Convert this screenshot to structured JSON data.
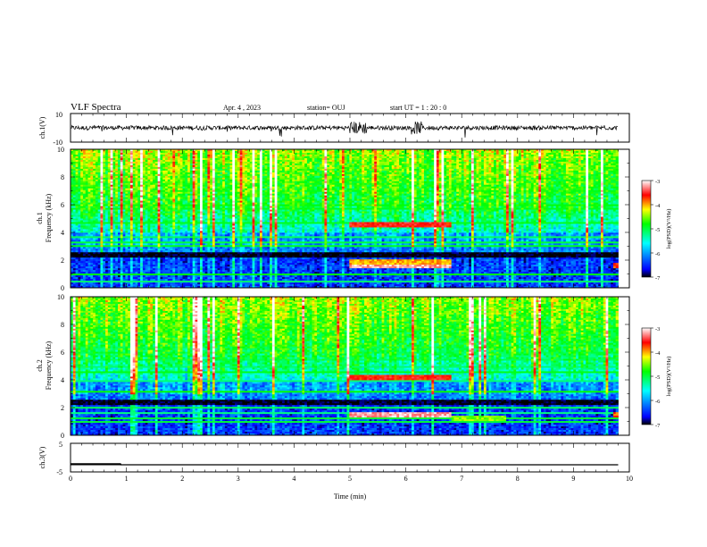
{
  "header": {
    "title": "VLF Spectra",
    "date": "Apr. 4  , 2023",
    "station": "station= OUJ",
    "start": "start  UT  =   1 : 20 : 0"
  },
  "colorbar": {
    "label": "log(PSD)(V²/Hz)",
    "ticks": [
      "-3",
      "-4",
      "-5",
      "-6",
      "-7"
    ],
    "range": [
      -7,
      -3
    ],
    "colors": [
      "#000000",
      "#0000ff",
      "#00ffff",
      "#00ff00",
      "#ffff00",
      "#ff0000",
      "#ffffff"
    ]
  },
  "chart_data": [
    {
      "type": "line",
      "name": "ch1-waveform",
      "ylabel": "ch.1(V)",
      "ylim": [
        -10,
        10
      ],
      "y_tick_labels": [
        "10",
        "-10"
      ],
      "xlim": [
        0,
        10
      ],
      "description_values": {
        "baseline_amplitude_V": 1.5,
        "burst_intervals_min": [
          [
            5.0,
            5.3
          ],
          [
            6.1,
            6.3
          ]
        ]
      }
    },
    {
      "type": "heatmap",
      "name": "ch1-spectrogram",
      "ylabel_line1": "ch.1",
      "ylabel_line2": "Frequency (kHz)",
      "ylim": [
        0,
        10
      ],
      "y_tick_labels": [
        "0",
        "2",
        "4",
        "6",
        "8",
        "10"
      ],
      "xlim": [
        0,
        10
      ],
      "data_end_min": 9.8,
      "bands": [
        {
          "f_kHz": 4.5,
          "t_start": 5.0,
          "t_end": 6.8,
          "level": -3.6
        },
        {
          "f_kHz": 1.6,
          "t_start": 5.0,
          "t_end": 6.8,
          "level": -3.2
        },
        {
          "f_kHz": 1.9,
          "t_start": 5.0,
          "t_end": 6.8,
          "level": -4.0
        },
        {
          "f_kHz": 1.6,
          "t_start": 9.7,
          "t_end": 9.8,
          "level": -3.8
        }
      ]
    },
    {
      "type": "heatmap",
      "name": "ch2-spectrogram",
      "ylabel_line1": "ch.2",
      "ylabel_line2": "Frequency (kHz)",
      "ylim": [
        0,
        10
      ],
      "y_tick_labels": [
        "0",
        "2",
        "4",
        "6",
        "8",
        "10"
      ],
      "xlim": [
        0,
        10
      ],
      "data_end_min": 9.8,
      "bands": [
        {
          "f_kHz": 4.2,
          "t_start": 5.0,
          "t_end": 6.8,
          "level": -3.6
        },
        {
          "f_kHz": 1.5,
          "t_start": 5.0,
          "t_end": 6.8,
          "level": -3.2
        },
        {
          "f_kHz": 1.2,
          "t_start": 6.8,
          "t_end": 7.8,
          "level": -4.5
        },
        {
          "f_kHz": 1.5,
          "t_start": 9.7,
          "t_end": 9.8,
          "level": -3.8
        }
      ]
    },
    {
      "type": "line",
      "name": "ch3-signal",
      "ylabel": "ch.3(V)",
      "ylim": [
        -5,
        5
      ],
      "y_tick_labels": [
        "5",
        "-5"
      ],
      "xlim": [
        0,
        10
      ],
      "x": [
        0,
        0.9,
        0.9,
        9.8
      ],
      "y": [
        -2.3,
        -2.3,
        -2.5,
        -2.5
      ],
      "xlabel": "Time  (min)",
      "x_tick_labels": [
        "0",
        "1",
        "2",
        "3",
        "4",
        "5",
        "6",
        "7",
        "8",
        "9",
        "10"
      ]
    }
  ]
}
